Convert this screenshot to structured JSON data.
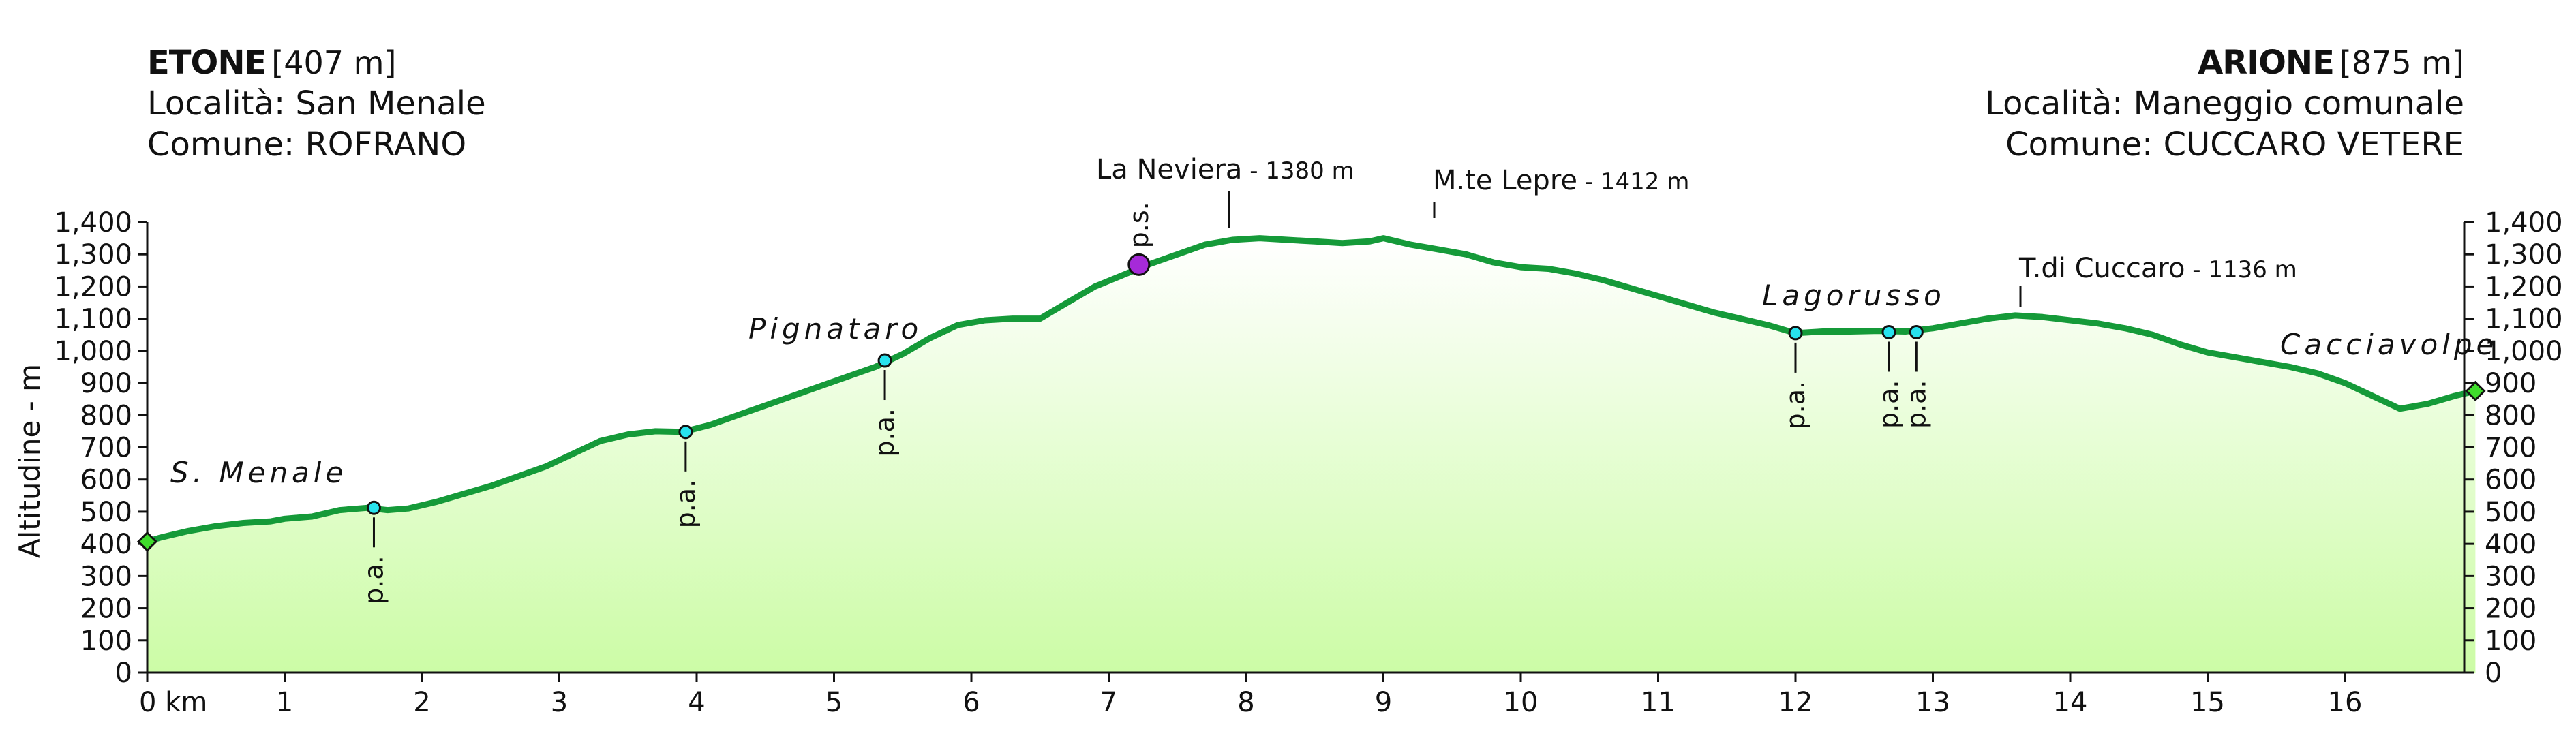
{
  "header": {
    "start": {
      "name": "ETONE",
      "altitude": "[407 m]",
      "locality": "Località: San Menale",
      "comune": "Comune: ROFRANO"
    },
    "end": {
      "name": "ARIONE",
      "altitude": "[875 m]",
      "locality": "Località: Maneggio comunale",
      "comune": "Comune: CUCCARO VETERE"
    }
  },
  "chart_data": {
    "type": "area",
    "ylabel": "Altitudine - m",
    "xlim": [
      0,
      16.95
    ],
    "ylim": [
      0,
      1400
    ],
    "x_unit_label": "0 km",
    "x_ticks": [
      "1",
      "2",
      "3",
      "4",
      "5",
      "6",
      "7",
      "8",
      "9",
      "10",
      "11",
      "12",
      "13",
      "14",
      "15",
      "16"
    ],
    "y_ticks": [
      "0",
      "100",
      "200",
      "300",
      "400",
      "500",
      "600",
      "700",
      "800",
      "900",
      "1,000",
      "1,100",
      "1,200",
      "1,300",
      "1,400"
    ],
    "grid": false,
    "profile": {
      "x": [
        0,
        0.1,
        0.3,
        0.5,
        0.7,
        0.9,
        1.0,
        1.2,
        1.4,
        1.6,
        1.75,
        1.9,
        2.1,
        2.3,
        2.5,
        2.7,
        2.9,
        3.1,
        3.3,
        3.5,
        3.7,
        3.9,
        4.1,
        4.3,
        4.5,
        4.7,
        4.9,
        5.1,
        5.3,
        5.5,
        5.7,
        5.9,
        6.1,
        6.3,
        6.5,
        6.7,
        6.9,
        7.1,
        7.3,
        7.5,
        7.7,
        7.9,
        8.1,
        8.3,
        8.5,
        8.7,
        8.9,
        9.0,
        9.2,
        9.4,
        9.6,
        9.8,
        10.0,
        10.2,
        10.4,
        10.6,
        10.8,
        11.0,
        11.2,
        11.4,
        11.6,
        11.8,
        12.0,
        12.2,
        12.4,
        12.6,
        12.8,
        13.0,
        13.2,
        13.4,
        13.6,
        13.8,
        14.0,
        14.2,
        14.4,
        14.6,
        14.8,
        15.0,
        15.2,
        15.4,
        15.6,
        15.8,
        16.0,
        16.2,
        16.4,
        16.6,
        16.8,
        16.95
      ],
      "y": [
        407,
        420,
        440,
        455,
        465,
        470,
        478,
        485,
        505,
        512,
        505,
        510,
        530,
        555,
        580,
        610,
        640,
        680,
        720,
        740,
        750,
        748,
        770,
        800,
        830,
        860,
        890,
        920,
        950,
        990,
        1040,
        1080,
        1095,
        1100,
        1100,
        1150,
        1200,
        1235,
        1270,
        1300,
        1330,
        1345,
        1350,
        1345,
        1340,
        1335,
        1340,
        1350,
        1330,
        1315,
        1300,
        1275,
        1260,
        1255,
        1240,
        1220,
        1195,
        1170,
        1145,
        1120,
        1100,
        1080,
        1055,
        1060,
        1060,
        1062,
        1060,
        1070,
        1085,
        1100,
        1110,
        1105,
        1095,
        1085,
        1070,
        1050,
        1020,
        995,
        980,
        965,
        950,
        930,
        900,
        860,
        820,
        835,
        860,
        875
      ]
    },
    "endpoints": [
      {
        "x": 0,
        "y": 407
      },
      {
        "x": 16.95,
        "y": 875
      }
    ],
    "summit": {
      "label": "p.s.",
      "x": 7.22,
      "y": 1268
    },
    "waypoints": [
      {
        "label": "p.a.",
        "x": 1.65,
        "y": 512
      },
      {
        "label": "p.a.",
        "x": 3.92,
        "y": 748
      },
      {
        "label": "p.a.",
        "x": 5.37,
        "y": 970
      },
      {
        "label": "p.a.",
        "x": 12.0,
        "y": 1055
      },
      {
        "label": "p.a.",
        "x": 12.68,
        "y": 1058
      },
      {
        "label": "p.a.",
        "x": 12.88,
        "y": 1058
      }
    ],
    "places": [
      "S. Menale",
      "Pignataro",
      "Lagorusso",
      "Cacciavolpe"
    ],
    "peaks": [
      {
        "name": "La Neviera",
        "alt": " - 1380 m"
      },
      {
        "name": "M.te Lepre",
        "alt": " - 1412 m"
      },
      {
        "name": "T.di Cuccaro",
        "alt": " - 1136 m"
      }
    ]
  },
  "colors": {
    "line": "#159a39",
    "fill_top": "#ffffff",
    "fill_bottom": "#ccfca6",
    "waypoint": "#28e3ee",
    "summit": "#a62ad9",
    "endpoint": "#3fdc2c"
  }
}
